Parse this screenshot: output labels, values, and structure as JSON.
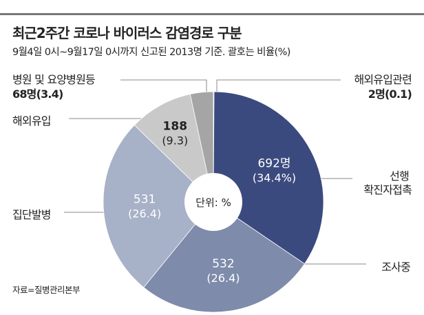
{
  "title": "최근2주간 코로나 바이러스 감염경로 구분",
  "subtitle": "9월4일 0시~9월17일 0시까지 신고된 2013명 기준. 괄호는 비율(%)",
  "source": "자료=질병관리본부",
  "chart_data": {
    "type": "pie",
    "title": "최근2주간 코로나 바이러스 감염경로 구분",
    "center_label": "단위: %",
    "total": 2013,
    "slices": [
      {
        "name": "해외유입관련",
        "value": 2,
        "percent": 0.1,
        "label": "해외유입관련",
        "value_label": "2명(0.1)",
        "color": "#b9b9b9"
      },
      {
        "name": "선행 확진자접촉",
        "value": 692,
        "percent": 34.4,
        "label_1": "선행",
        "label_2": "확진자접촉",
        "inner_value": "692명",
        "inner_percent": "(34.4%)",
        "color": "#3b4a7e"
      },
      {
        "name": "조사중",
        "value": 532,
        "percent": 26.4,
        "label": "조사중",
        "inner_value": "532",
        "inner_percent": "(26.4)",
        "color": "#7e8bab"
      },
      {
        "name": "집단발병",
        "value": 531,
        "percent": 26.4,
        "label": "집단발병",
        "inner_value": "531",
        "inner_percent": "(26.4)",
        "color": "#a7b1c7"
      },
      {
        "name": "해외유입",
        "value": 188,
        "percent": 9.3,
        "label": "해외유입",
        "inner_value": "188",
        "inner_percent": "(9.3)",
        "color": "#c9c9c9"
      },
      {
        "name": "병원 및 요양병원등",
        "value": 68,
        "percent": 3.4,
        "label": "병원 및 요양병원등",
        "value_label": "68명(3.4)",
        "color": "#a5a5a5"
      }
    ]
  }
}
